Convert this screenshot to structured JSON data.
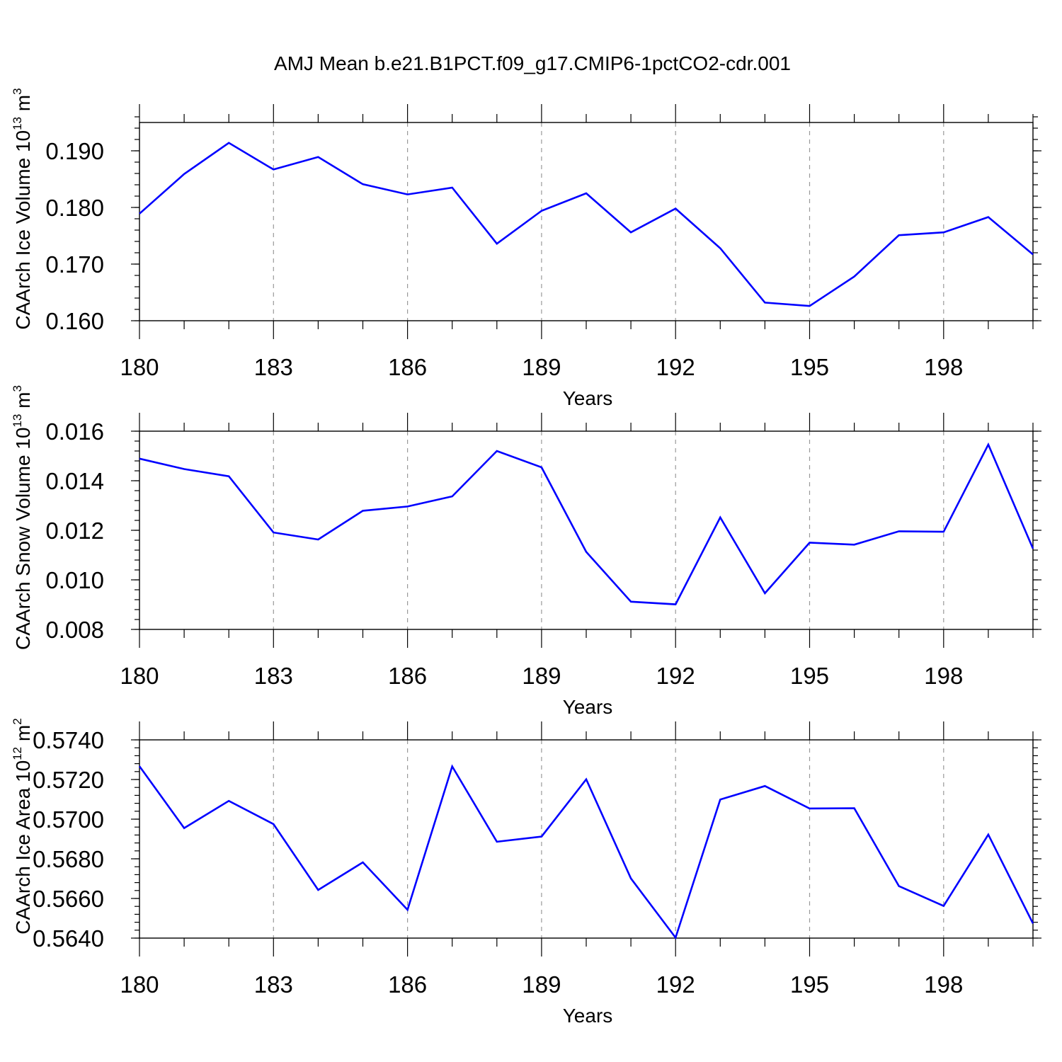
{
  "title": "AMJ Mean b.e21.B1PCT.f09_g17.CMIP6-1pctCO2-cdr.001",
  "colors": {
    "line": "#0000ff",
    "grid": "#999999",
    "axis": "#000000"
  },
  "chart_data": [
    {
      "type": "line",
      "ylabel_main": "CAArch Ice Volume 10",
      "ylabel_exp": "13",
      "ylabel_unit": " m",
      "ylabel_unit_exp": "3",
      "xlabel": "Years",
      "x": [
        180,
        181,
        182,
        183,
        184,
        185,
        186,
        187,
        188,
        189,
        190,
        191,
        192,
        193,
        194,
        195,
        196,
        197,
        198,
        199,
        200
      ],
      "xlim": [
        180,
        200
      ],
      "x_major_ticks": [
        180,
        183,
        186,
        189,
        192,
        195,
        198
      ],
      "x_tick_labels": [
        "180",
        "183",
        "186",
        "189",
        "192",
        "195",
        "198"
      ],
      "ylim": [
        0.16,
        0.195
      ],
      "y_major_ticks": [
        0.16,
        0.17,
        0.18,
        0.19
      ],
      "y_tick_labels": [
        "0.160",
        "0.170",
        "0.180",
        "0.190"
      ],
      "y_minor_step": 0.002,
      "series": [
        {
          "name": "CAArch Ice Volume",
          "values": [
            0.1789,
            0.1859,
            0.1914,
            0.1867,
            0.1889,
            0.1841,
            0.1823,
            0.1835,
            0.1736,
            0.1794,
            0.1825,
            0.1756,
            0.1798,
            0.1728,
            0.1632,
            0.1626,
            0.1678,
            0.1751,
            0.1756,
            0.1783,
            0.1717
          ]
        }
      ]
    },
    {
      "type": "line",
      "ylabel_main": "CAArch Snow Volume 10",
      "ylabel_exp": "13",
      "ylabel_unit": " m",
      "ylabel_unit_exp": "3",
      "xlabel": "Years",
      "x": [
        180,
        181,
        182,
        183,
        184,
        185,
        186,
        187,
        188,
        189,
        190,
        191,
        192,
        193,
        194,
        195,
        196,
        197,
        198,
        199,
        200
      ],
      "xlim": [
        180,
        200
      ],
      "x_major_ticks": [
        180,
        183,
        186,
        189,
        192,
        195,
        198
      ],
      "x_tick_labels": [
        "180",
        "183",
        "186",
        "189",
        "192",
        "195",
        "198"
      ],
      "ylim": [
        0.008,
        0.016
      ],
      "y_major_ticks": [
        0.008,
        0.01,
        0.012,
        0.014,
        0.016
      ],
      "y_tick_labels": [
        "0.008",
        "0.010",
        "0.012",
        "0.014",
        "0.016"
      ],
      "y_minor_step": 0.0004,
      "series": [
        {
          "name": "CAArch Snow Volume",
          "values": [
            0.01489,
            0.01447,
            0.01418,
            0.01191,
            0.01163,
            0.01279,
            0.01296,
            0.01337,
            0.0152,
            0.01454,
            0.01113,
            0.00912,
            0.00901,
            0.01252,
            0.00946,
            0.0115,
            0.01142,
            0.01196,
            0.01194,
            0.01546,
            0.01126
          ]
        }
      ]
    },
    {
      "type": "line",
      "ylabel_main": "CAArch Ice Area 10",
      "ylabel_exp": "12",
      "ylabel_unit": " m",
      "ylabel_unit_exp": "2",
      "xlabel": "Years",
      "x": [
        180,
        181,
        182,
        183,
        184,
        185,
        186,
        187,
        188,
        189,
        190,
        191,
        192,
        193,
        194,
        195,
        196,
        197,
        198,
        199,
        200
      ],
      "xlim": [
        180,
        200
      ],
      "x_major_ticks": [
        180,
        183,
        186,
        189,
        192,
        195,
        198
      ],
      "x_tick_labels": [
        "180",
        "183",
        "186",
        "189",
        "192",
        "195",
        "198"
      ],
      "ylim": [
        0.564,
        0.574
      ],
      "y_major_ticks": [
        0.564,
        0.566,
        0.568,
        0.57,
        0.572,
        0.574
      ],
      "y_tick_labels": [
        "0.5640",
        "0.5660",
        "0.5680",
        "0.5700",
        "0.5720",
        "0.5740"
      ],
      "y_minor_step": 0.0004,
      "series": [
        {
          "name": "CAArch Ice Area",
          "values": [
            0.57267,
            0.56955,
            0.57092,
            0.56975,
            0.56643,
            0.56782,
            0.56543,
            0.57266,
            0.56886,
            0.56912,
            0.57201,
            0.56701,
            0.56402,
            0.57099,
            0.57167,
            0.57054,
            0.57055,
            0.56662,
            0.56562,
            0.56922,
            0.56474
          ]
        }
      ]
    }
  ]
}
